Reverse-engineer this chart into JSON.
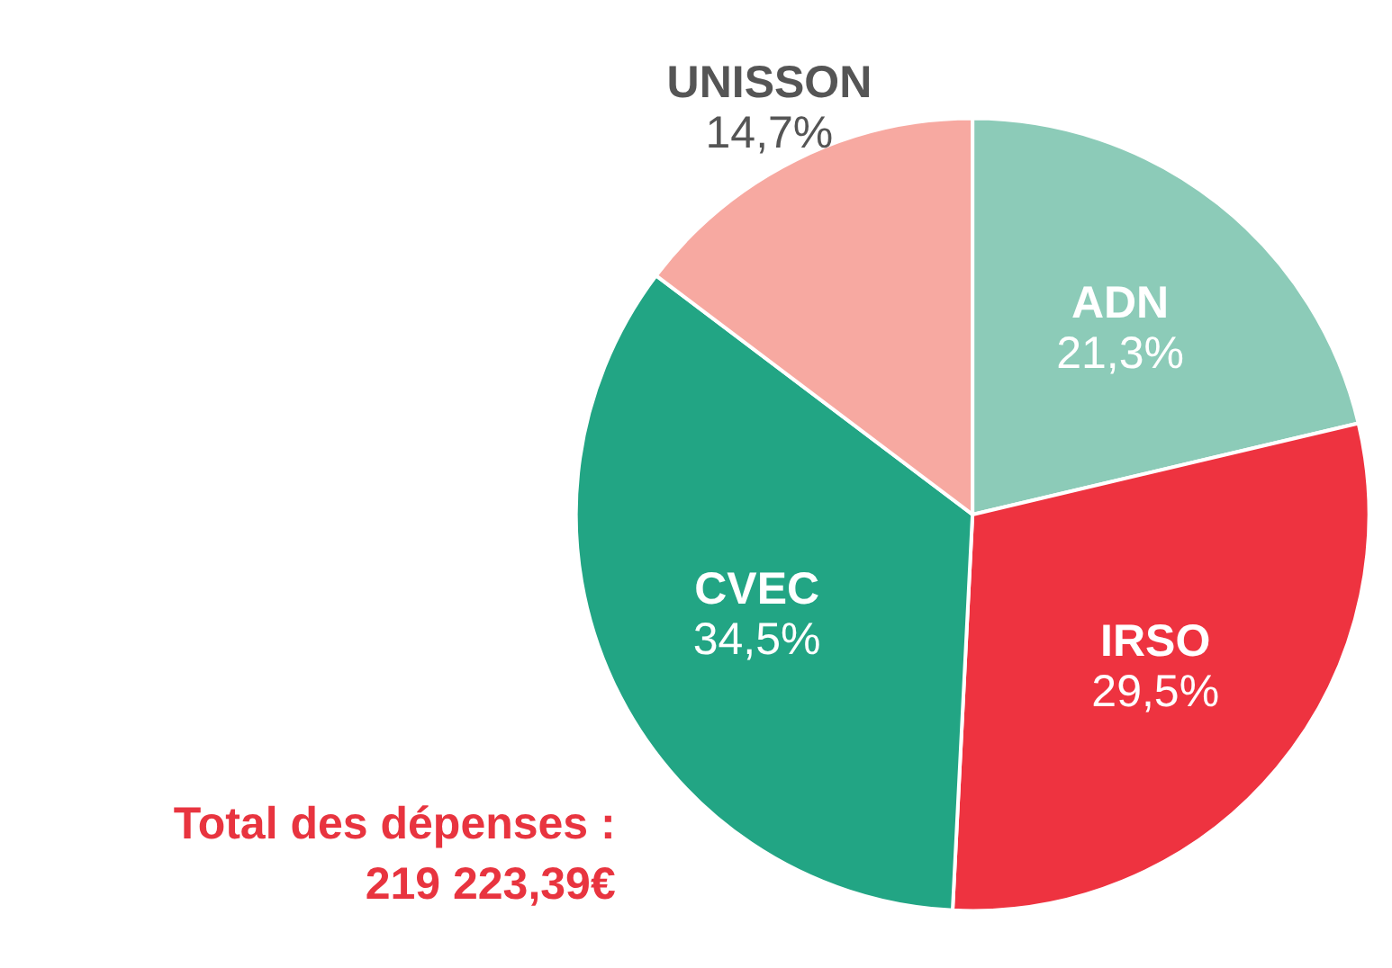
{
  "chart_data": {
    "type": "pie",
    "categories": [
      "ADN",
      "IRSO",
      "CVEC",
      "UNISSON"
    ],
    "values": [
      21.3,
      29.5,
      34.5,
      14.7
    ],
    "colors": [
      "#8ccbb8",
      "#ee3340",
      "#22a584",
      "#f7a9a1"
    ],
    "value_labels": [
      "21,3%",
      "29,5%",
      "34,5%",
      "14,7%"
    ],
    "annotations": [
      "Total des dépenses :\n219 223,39€"
    ]
  }
}
